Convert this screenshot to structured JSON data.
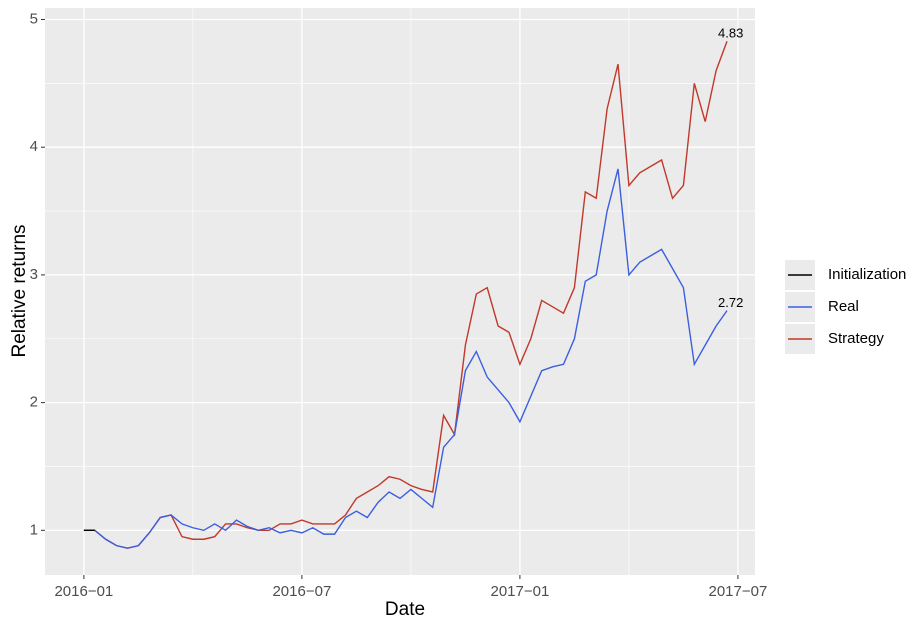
{
  "chart_data": {
    "type": "line",
    "x_label": "Date",
    "y_label": "Relative returns",
    "xlim": [
      -1.07,
      18.47
    ],
    "xticks": [
      {
        "value": 0,
        "label": "2016−01"
      },
      {
        "value": 6,
        "label": "2016−07"
      },
      {
        "value": 12,
        "label": "2017−01"
      },
      {
        "value": 18,
        "label": "2017−07"
      }
    ],
    "ylim": [
      0.65,
      5.09
    ],
    "yticks": [
      1,
      2,
      3,
      4,
      5
    ],
    "grid": true,
    "legend": "right",
    "x": [
      0,
      0.3,
      0.6,
      0.9,
      1.2,
      1.5,
      1.8,
      2.1,
      2.4,
      2.7,
      3.0,
      3.3,
      3.6,
      3.9,
      4.2,
      4.5,
      4.8,
      5.1,
      5.4,
      5.7,
      6.0,
      6.3,
      6.6,
      6.9,
      7.2,
      7.5,
      7.8,
      8.1,
      8.4,
      8.7,
      9.0,
      9.3,
      9.6,
      9.9,
      10.2,
      10.5,
      10.8,
      11.1,
      11.4,
      11.7,
      12.0,
      12.3,
      12.6,
      12.9,
      13.2,
      13.5,
      13.8,
      14.1,
      14.4,
      14.7,
      15.0,
      15.3,
      15.6,
      15.9,
      16.2,
      16.5,
      16.8,
      17.1,
      17.4,
      17.7
    ],
    "series": [
      {
        "name": "Initialization",
        "color": "#000000",
        "x": [
          0,
          0.3
        ],
        "values": [
          1,
          1
        ]
      },
      {
        "name": "Real",
        "color": "#3b5fe0",
        "values": [
          1.0,
          1.0,
          0.93,
          0.88,
          0.86,
          0.88,
          0.98,
          1.1,
          1.12,
          1.05,
          1.02,
          1.0,
          1.05,
          1.0,
          1.08,
          1.03,
          1.0,
          1.02,
          0.98,
          1.0,
          0.98,
          1.02,
          0.97,
          0.97,
          1.1,
          1.15,
          1.1,
          1.22,
          1.3,
          1.25,
          1.32,
          1.25,
          1.18,
          1.65,
          1.75,
          2.25,
          2.4,
          2.2,
          2.1,
          2.0,
          1.85,
          2.05,
          2.25,
          2.28,
          2.3,
          2.5,
          2.95,
          3.0,
          3.5,
          3.83,
          3.0,
          3.1,
          3.15,
          3.2,
          3.05,
          2.9,
          2.3,
          2.45,
          2.6,
          2.72
        ]
      },
      {
        "name": "Strategy",
        "color": "#c0392b",
        "values": [
          1.0,
          1.0,
          0.93,
          0.88,
          0.86,
          0.88,
          0.98,
          1.1,
          1.12,
          0.95,
          0.93,
          0.93,
          0.95,
          1.05,
          1.05,
          1.02,
          1.0,
          1.0,
          1.05,
          1.05,
          1.08,
          1.05,
          1.05,
          1.05,
          1.12,
          1.25,
          1.3,
          1.35,
          1.42,
          1.4,
          1.35,
          1.32,
          1.3,
          1.9,
          1.75,
          2.45,
          2.85,
          2.9,
          2.6,
          2.55,
          2.3,
          2.5,
          2.8,
          2.75,
          2.7,
          2.9,
          3.65,
          3.6,
          4.3,
          4.65,
          3.7,
          3.8,
          3.85,
          3.9,
          3.6,
          3.7,
          4.5,
          4.2,
          4.6,
          4.83
        ]
      }
    ],
    "annotations": [
      {
        "text": "4.83",
        "x": 17.7,
        "y": 4.83
      },
      {
        "text": "2.72",
        "x": 17.7,
        "y": 2.72
      }
    ]
  }
}
